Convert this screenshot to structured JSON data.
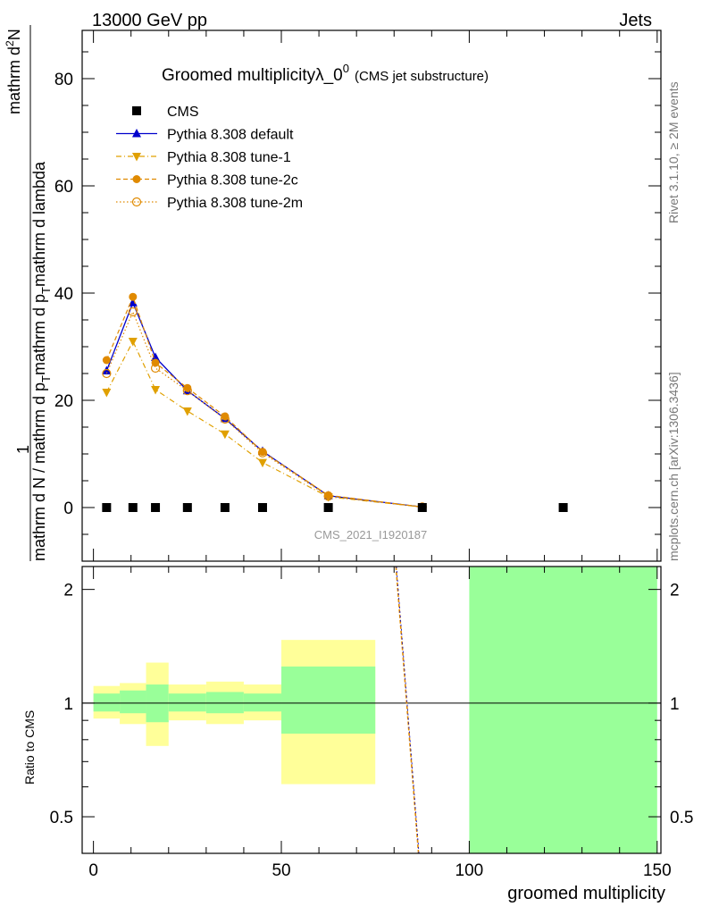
{
  "header": {
    "left": "13000 GeV pp",
    "right": "Jets",
    "title_main": "Groomed multiplicityλ_0",
    "title_sup": "0",
    "title_sub": "(CMS jet substructure)",
    "analysis": "CMS_2021_I1920187",
    "side_top": "Rivet 3.1.10, ≥ 2M events",
    "side_bottom": "mcplots.cern.ch [arXiv:1306.3436]"
  },
  "ylabel_main": {
    "one": "1",
    "frac": "mathrm d N / mathrm d p",
    "sub_T": "T",
    "mid": "mathrm d p",
    "tail": "mathrm d lambda",
    "top": "mathrm d",
    "top_sup": "2",
    "top_N": "N"
  },
  "ylabel_ratio": "Ratio to CMS",
  "xlabel": "groomed multiplicity",
  "legend": [
    {
      "label": "CMS",
      "color": "#000000",
      "marker": "square",
      "line": "none"
    },
    {
      "label": "Pythia 8.308 default",
      "color": "#0000cc",
      "marker": "triangle-up",
      "line": "solid"
    },
    {
      "label": "Pythia 8.308 tune-1",
      "color": "#e0a000",
      "marker": "triangle-down",
      "line": "dashdot"
    },
    {
      "label": "Pythia 8.308 tune-2c",
      "color": "#e08a00",
      "marker": "circle",
      "line": "dashed"
    },
    {
      "label": "Pythia 8.308 tune-2m",
      "color": "#e08a00",
      "marker": "circle-open",
      "line": "dotted"
    }
  ],
  "chart_data": {
    "type": "scatter",
    "x_range": [
      -3,
      151
    ],
    "main_ylim": [
      -10,
      89
    ],
    "main_yticks": [
      "0",
      "20",
      "40",
      "60",
      "80"
    ],
    "ratio_ylim": [
      0.4,
      2.3
    ],
    "ratio_yticks": [
      "0.5",
      "1",
      "2"
    ],
    "xticks": [
      "0",
      "50",
      "100",
      "150"
    ],
    "cms": {
      "x": [
        3.5,
        10.5,
        16.5,
        25,
        35,
        45,
        62.5,
        87.5,
        125
      ],
      "y": [
        0,
        0,
        0,
        0,
        0,
        0,
        0,
        0,
        0
      ]
    },
    "series": [
      {
        "name": "Pythia 8.308 default",
        "x": [
          3.5,
          10.5,
          16.5,
          25,
          35,
          45,
          62.5,
          87.5
        ],
        "y": [
          25.5,
          38.2,
          28,
          21.8,
          16.6,
          10.5,
          2.2,
          0.1
        ]
      },
      {
        "name": "Pythia 8.308 tune-1",
        "x": [
          3.5,
          10.5,
          16.5,
          25,
          35,
          45,
          62.5,
          87.5
        ],
        "y": [
          21.5,
          31,
          22,
          18,
          13.7,
          8.4,
          2.0,
          0.1
        ]
      },
      {
        "name": "Pythia 8.308 tune-2c",
        "x": [
          3.5,
          10.5,
          16.5,
          25,
          35,
          45,
          62.5,
          87.5
        ],
        "y": [
          27.5,
          39.3,
          27,
          22.3,
          17,
          10.4,
          2.3,
          0.1
        ]
      },
      {
        "name": "Pythia 8.308 tune-2m",
        "x": [
          3.5,
          10.5,
          16.5,
          25,
          35,
          45,
          62.5,
          87.5
        ],
        "y": [
          25,
          36.5,
          26,
          21.8,
          16.5,
          10.2,
          2.1,
          0.1
        ]
      }
    ],
    "ratio_bands": [
      {
        "x0": 0,
        "x1": 7,
        "inner": [
          0.95,
          1.06
        ],
        "outer": [
          0.91,
          1.11
        ]
      },
      {
        "x0": 7,
        "x1": 14,
        "inner": [
          0.94,
          1.08
        ],
        "outer": [
          0.88,
          1.13
        ]
      },
      {
        "x0": 14,
        "x1": 20,
        "inner": [
          0.89,
          1.12
        ],
        "outer": [
          0.77,
          1.28
        ]
      },
      {
        "x0": 20,
        "x1": 30,
        "inner": [
          0.95,
          1.06
        ],
        "outer": [
          0.9,
          1.12
        ]
      },
      {
        "x0": 30,
        "x1": 40,
        "inner": [
          0.94,
          1.07
        ],
        "outer": [
          0.88,
          1.14
        ]
      },
      {
        "x0": 40,
        "x1": 50,
        "inner": [
          0.95,
          1.06
        ],
        "outer": [
          0.9,
          1.12
        ]
      },
      {
        "x0": 50,
        "x1": 75,
        "inner": [
          0.83,
          1.25
        ],
        "outer": [
          0.61,
          1.47
        ]
      },
      {
        "x0": 100,
        "x1": 150,
        "inner": [
          0.3,
          2.5
        ],
        "outer": [
          0.3,
          2.5
        ]
      }
    ],
    "ratio_line": {
      "x": [
        80.5,
        86.5
      ],
      "y": [
        2.5,
        0.38
      ]
    }
  }
}
